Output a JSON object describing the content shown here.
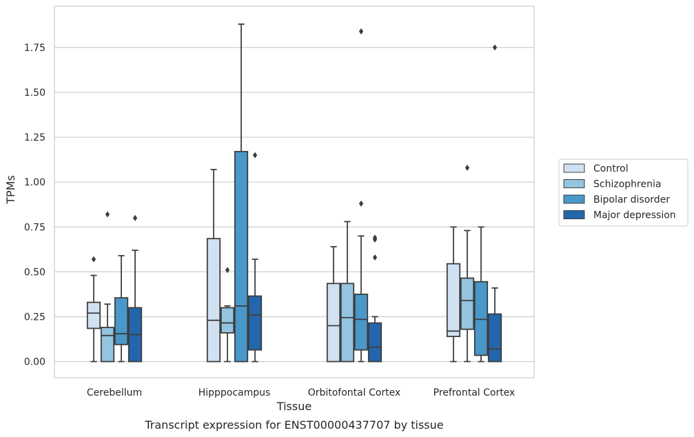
{
  "caption": "Transcript expression for ENST00000437707 by tissue",
  "chart_data": {
    "type": "box",
    "title": "",
    "xlabel": "Tissue",
    "ylabel": "TPMs",
    "categories": [
      "Cerebellum",
      "Hipppocampus",
      "Orbitofontal Cortex",
      "Prefrontal Cortex"
    ],
    "ylim": [
      -0.09,
      1.98
    ],
    "yticks": [
      "0.00",
      "0.25",
      "0.50",
      "0.75",
      "1.00",
      "1.25",
      "1.50",
      "1.75"
    ],
    "grid": "horizontal",
    "legend_position": "right",
    "series": [
      {
        "name": "Control",
        "color": "#d0e1f2",
        "boxes": [
          {
            "whislo": 0.0,
            "q1": 0.185,
            "med": 0.27,
            "q3": 0.33,
            "whishi": 0.48,
            "fliers": [
              0.57
            ]
          },
          {
            "whislo": 0.0,
            "q1": 0.0,
            "med": 0.23,
            "q3": 0.685,
            "whishi": 1.07,
            "fliers": []
          },
          {
            "whislo": 0.0,
            "q1": 0.0,
            "med": 0.2,
            "q3": 0.435,
            "whishi": 0.64,
            "fliers": []
          },
          {
            "whislo": 0.0,
            "q1": 0.14,
            "med": 0.17,
            "q3": 0.545,
            "whishi": 0.75,
            "fliers": []
          }
        ]
      },
      {
        "name": "Schizophrenia",
        "color": "#94c4df",
        "boxes": [
          {
            "whislo": 0.0,
            "q1": 0.0,
            "med": 0.145,
            "q3": 0.19,
            "whishi": 0.32,
            "fliers": [
              0.82
            ]
          },
          {
            "whislo": 0.0,
            "q1": 0.16,
            "med": 0.215,
            "q3": 0.3,
            "whishi": 0.31,
            "fliers": [
              0.51
            ]
          },
          {
            "whislo": 0.0,
            "q1": 0.0,
            "med": 0.245,
            "q3": 0.435,
            "whishi": 0.78,
            "fliers": []
          },
          {
            "whislo": 0.0,
            "q1": 0.18,
            "med": 0.34,
            "q3": 0.465,
            "whishi": 0.73,
            "fliers": [
              1.08
            ]
          }
        ]
      },
      {
        "name": "Bipolar disorder",
        "color": "#4a98c9",
        "boxes": [
          {
            "whislo": 0.0,
            "q1": 0.095,
            "med": 0.155,
            "q3": 0.355,
            "whishi": 0.59,
            "fliers": []
          },
          {
            "whislo": 0.0,
            "q1": 0.0,
            "med": 0.31,
            "q3": 1.17,
            "whishi": 1.88,
            "fliers": []
          },
          {
            "whislo": 0.0,
            "q1": 0.065,
            "med": 0.235,
            "q3": 0.375,
            "whishi": 0.7,
            "fliers": [
              0.88,
              1.84
            ]
          },
          {
            "whislo": 0.0,
            "q1": 0.035,
            "med": 0.235,
            "q3": 0.445,
            "whishi": 0.75,
            "fliers": []
          }
        ]
      },
      {
        "name": "Major depression",
        "color": "#2366ac",
        "boxes": [
          {
            "whislo": 0.0,
            "q1": 0.0,
            "med": 0.15,
            "q3": 0.3,
            "whishi": 0.62,
            "fliers": [
              0.8
            ]
          },
          {
            "whislo": 0.0,
            "q1": 0.065,
            "med": 0.26,
            "q3": 0.365,
            "whishi": 0.57,
            "fliers": [
              1.15
            ]
          },
          {
            "whislo": 0.0,
            "q1": 0.0,
            "med": 0.08,
            "q3": 0.215,
            "whishi": 0.25,
            "fliers": [
              0.58,
              0.68,
              0.69
            ]
          },
          {
            "whislo": 0.0,
            "q1": 0.0,
            "med": 0.07,
            "q3": 0.265,
            "whishi": 0.41,
            "fliers": [
              1.75
            ]
          }
        ]
      }
    ]
  }
}
